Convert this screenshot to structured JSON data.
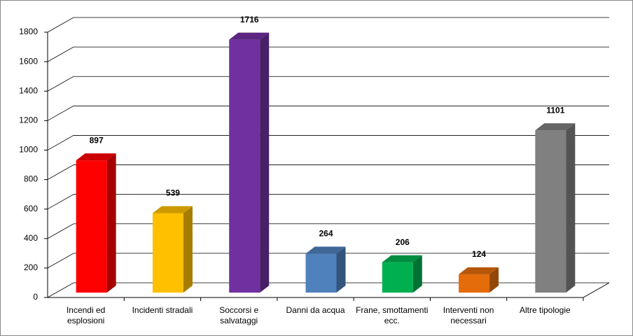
{
  "chart_data": {
    "type": "bar3d",
    "categories": [
      "Incendi ed esplosioni",
      "Incidenti stradali",
      "Soccorsi e salvataggi",
      "Danni da acqua",
      "Frane, smottamenti ecc.",
      "Interventi non necessari",
      "Altre tipologie"
    ],
    "values": [
      897,
      539,
      1716,
      264,
      206,
      124,
      1101
    ],
    "colors": [
      "#ff0000",
      "#ffc000",
      "#7030a0",
      "#4f81bd",
      "#00b050",
      "#e46c0a",
      "#808080"
    ],
    "ylim": [
      0,
      1800
    ],
    "yticks": [
      0,
      200,
      400,
      600,
      800,
      1000,
      1200,
      1400,
      1600,
      1800
    ],
    "grid": true
  }
}
